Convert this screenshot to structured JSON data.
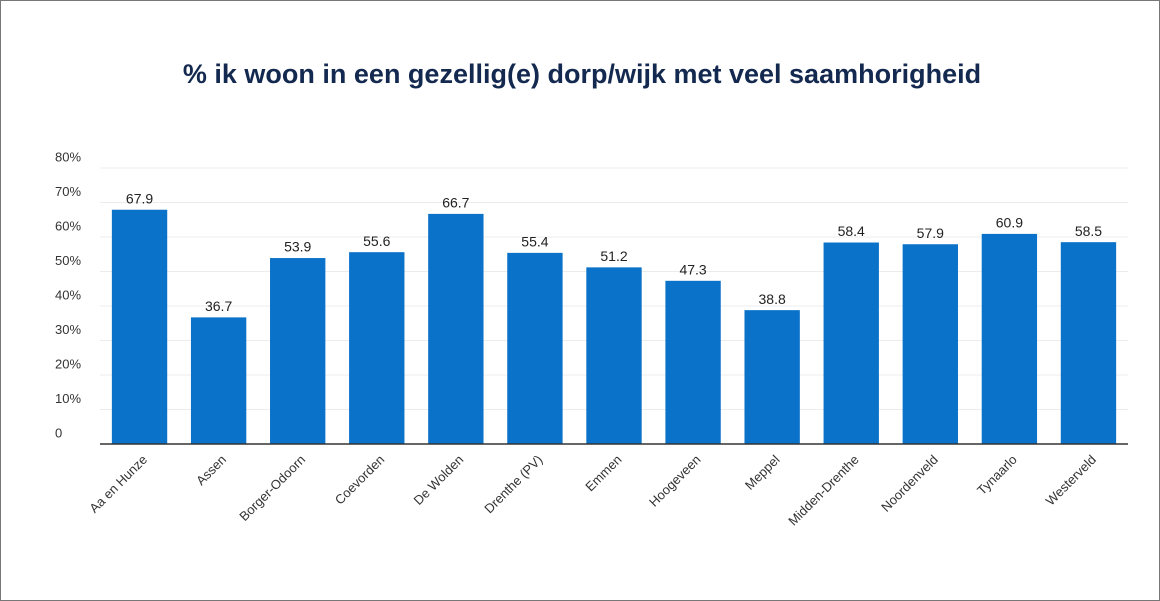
{
  "chart_data": {
    "type": "bar",
    "title": "% ik woon in een gezellig(e) dorp/wijk met veel saamhorigheid",
    "categories": [
      "Aa en Hunze",
      "Assen",
      "Borger-Odoorn",
      "Coevorden",
      "De Wolden",
      "Drenthe (PV)",
      "Emmen",
      "Hoogeveen",
      "Meppel",
      "Midden-Drenthe",
      "Noordenveld",
      "Tynaarlo",
      "Westerveld"
    ],
    "values": [
      67.9,
      36.7,
      53.9,
      55.6,
      66.7,
      55.4,
      51.2,
      47.3,
      38.8,
      58.4,
      57.9,
      60.9,
      58.5
    ],
    "color": "#0a72c9",
    "ylim": [
      0,
      80
    ],
    "yticks": [
      0,
      {
        "value": 10,
        "label": "10%"
      },
      {
        "value": 20,
        "label": "20%"
      },
      {
        "value": 30,
        "label": "30%"
      },
      {
        "value": 40,
        "label": "40%"
      },
      {
        "value": 50,
        "label": "50%"
      },
      {
        "value": 60,
        "label": "60%"
      },
      {
        "value": 70,
        "label": "70%"
      },
      {
        "value": 80,
        "label": "80%"
      }
    ],
    "grid": true
  }
}
